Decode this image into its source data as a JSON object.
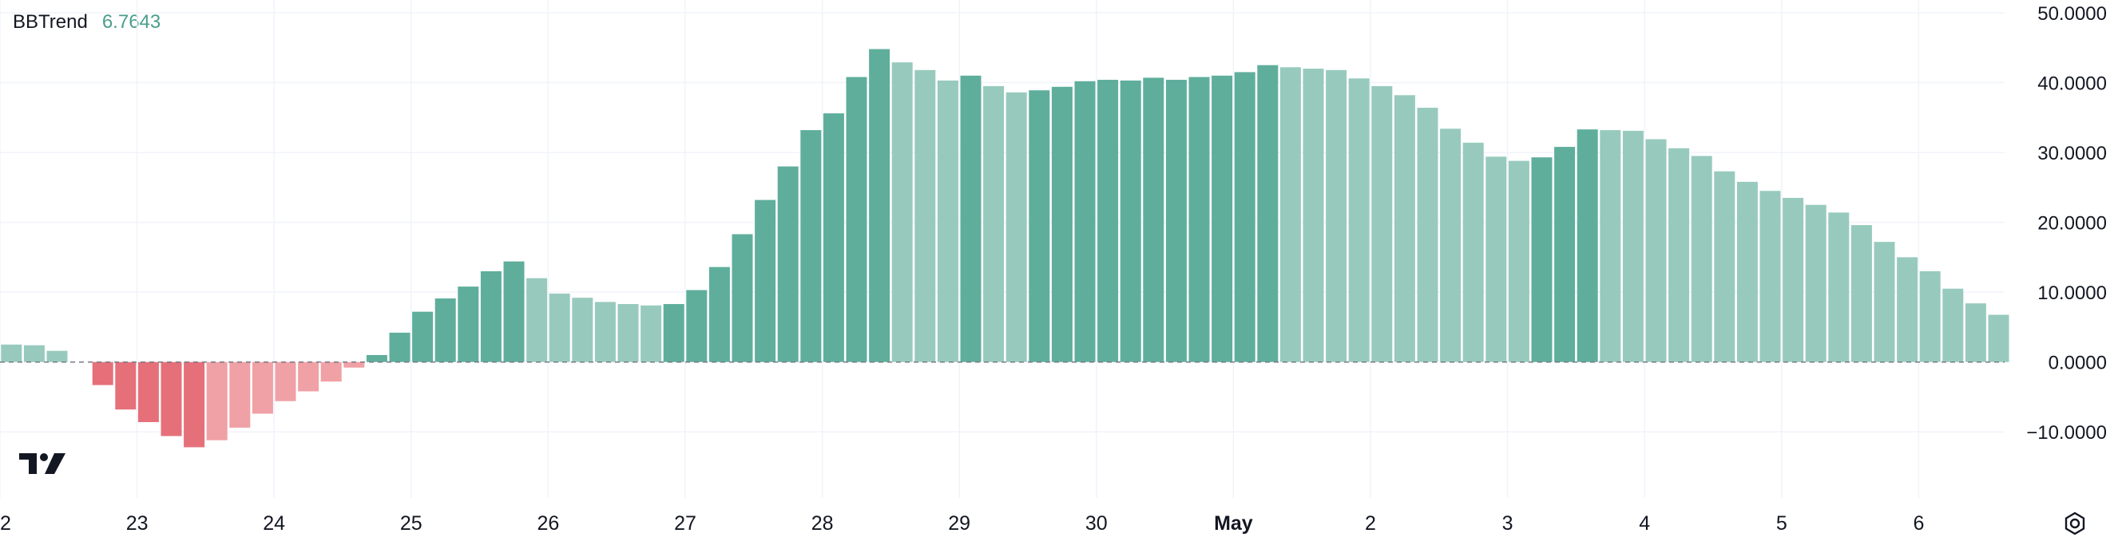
{
  "legend": {
    "name": "BBTrend",
    "value": "6.7643"
  },
  "colors": {
    "pos_strong": "#5fae9c",
    "pos_weak": "#97cabd",
    "neg_strong": "#e57079",
    "neg_weak": "#f0a1a6",
    "grid": "#f0f3fa",
    "zero_line": "#787b86"
  },
  "icons": {
    "logo": "tradingview-logo-icon",
    "settings": "gear-icon"
  },
  "chart_data": {
    "type": "bar",
    "title": "",
    "xlabel": "",
    "ylabel": "",
    "ylim": [
      -15,
      50
    ],
    "y_ticks": [
      "50.0000",
      "40.0000",
      "30.0000",
      "20.0000",
      "10.0000",
      "0.0000",
      "−10.0000"
    ],
    "x_ticks": [
      {
        "label": "22",
        "index": -0.5
      },
      {
        "label": "23",
        "index": 5.5
      },
      {
        "label": "24",
        "index": 11.5
      },
      {
        "label": "25",
        "index": 17.5
      },
      {
        "label": "26",
        "index": 23.5
      },
      {
        "label": "27",
        "index": 29.5
      },
      {
        "label": "28",
        "index": 35.5
      },
      {
        "label": "29",
        "index": 41.5
      },
      {
        "label": "30",
        "index": 47.5
      },
      {
        "label": "May",
        "index": 53.5,
        "bold": true
      },
      {
        "label": "2",
        "index": 59.5
      },
      {
        "label": "3",
        "index": 65.5
      },
      {
        "label": "4",
        "index": 71.5
      },
      {
        "label": "5",
        "index": 77.5
      },
      {
        "label": "6",
        "index": 83.5
      }
    ],
    "grid": true,
    "legend_position": "top-left",
    "series": [
      {
        "values": [
          2.5,
          2.4,
          1.6,
          0,
          -3.3,
          -6.8,
          -8.6,
          -10.6,
          -12.2,
          -11.2,
          -9.4,
          -7.4,
          -5.6,
          -4.2,
          -2.8,
          -0.8,
          1.0,
          4.2,
          7.2,
          9.1,
          10.8,
          13.0,
          14.4,
          12.0,
          9.8,
          9.2,
          8.6,
          8.3,
          8.1,
          8.3,
          10.3,
          13.6,
          18.3,
          23.2,
          28.0,
          33.2,
          35.6,
          40.8,
          44.8,
          42.9,
          41.8,
          40.3,
          41.0,
          39.5,
          38.6,
          38.9,
          39.4,
          40.2,
          40.4,
          40.3,
          40.7,
          40.4,
          40.8,
          41.0,
          41.5,
          42.5,
          42.2,
          42.0,
          41.8,
          40.6,
          39.5,
          38.2,
          36.4,
          33.4,
          31.4,
          29.4,
          28.8,
          29.3,
          30.8,
          33.3,
          33.2,
          33.1,
          31.9,
          30.6,
          29.5,
          27.3,
          25.8,
          24.5,
          23.5,
          22.5,
          21.4,
          19.6,
          17.2,
          15.0,
          13.0,
          10.5,
          8.4,
          6.7643
        ],
        "colors": [
          "pw",
          "pw",
          "pw",
          "pw",
          "ns",
          "ns",
          "ns",
          "ns",
          "ns",
          "nw",
          "nw",
          "nw",
          "nw",
          "nw",
          "nw",
          "nw",
          "ps",
          "ps",
          "ps",
          "ps",
          "ps",
          "ps",
          "ps",
          "pw",
          "pw",
          "pw",
          "pw",
          "pw",
          "pw",
          "ps",
          "ps",
          "ps",
          "ps",
          "ps",
          "ps",
          "ps",
          "ps",
          "ps",
          "ps",
          "pw",
          "pw",
          "pw",
          "ps",
          "pw",
          "pw",
          "ps",
          "ps",
          "ps",
          "ps",
          "ps",
          "ps",
          "ps",
          "ps",
          "ps",
          "ps",
          "ps",
          "pw",
          "pw",
          "pw",
          "pw",
          "pw",
          "pw",
          "pw",
          "pw",
          "pw",
          "pw",
          "pw",
          "ps",
          "ps",
          "ps",
          "pw",
          "pw",
          "pw",
          "pw",
          "pw",
          "pw",
          "pw",
          "pw",
          "pw",
          "pw",
          "pw",
          "pw",
          "pw",
          "pw",
          "pw",
          "pw",
          "pw",
          "pw"
        ]
      }
    ]
  }
}
